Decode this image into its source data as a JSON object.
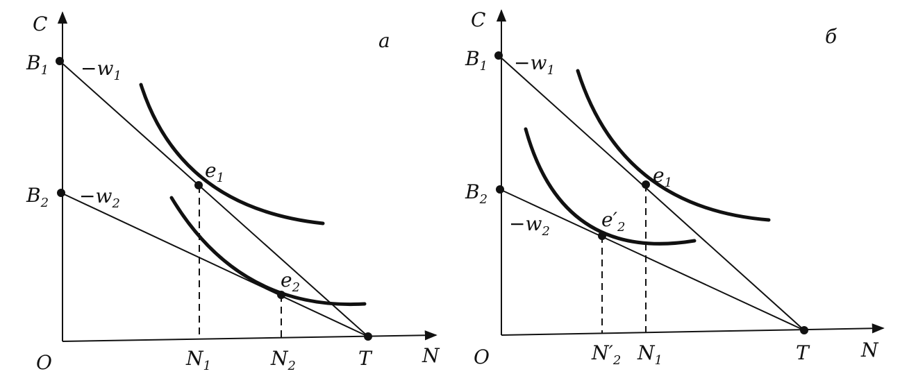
{
  "panel_a": {
    "panel_label": "а",
    "y_axis": "C",
    "x_axis": "N",
    "origin": "O",
    "b1": {
      "main": "B",
      "sub": "1"
    },
    "b2": {
      "main": "B",
      "sub": "2"
    },
    "w1": {
      "main": "−w",
      "sub": "1"
    },
    "w2": {
      "main": "−w",
      "sub": "2"
    },
    "e1": {
      "main": "e",
      "sub": "1"
    },
    "e2": {
      "main": "e",
      "sub": "2"
    },
    "n1": {
      "main": "N",
      "sub": "1"
    },
    "n2": {
      "main": "N",
      "sub": "2"
    },
    "t": "T"
  },
  "panel_b": {
    "panel_label": "б",
    "y_axis": "C",
    "x_axis": "N",
    "origin": "O",
    "b1": {
      "main": "B",
      "sub": "1"
    },
    "b2": {
      "main": "B",
      "sub": "2"
    },
    "w1": {
      "main": "−w",
      "sub": "1"
    },
    "w2": {
      "main": "−w",
      "sub": "2"
    },
    "e1": {
      "main": "e",
      "sub": "1"
    },
    "e2": {
      "main": "e′",
      "sub": "2"
    },
    "n2": {
      "main": "N′",
      "sub": "2"
    },
    "n1": {
      "main": "N",
      "sub": "1"
    },
    "t": "T"
  }
}
